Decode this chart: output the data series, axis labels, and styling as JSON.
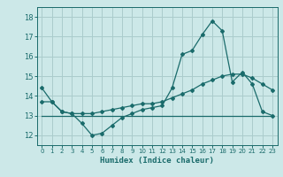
{
  "title": "",
  "xlabel": "Humidex (Indice chaleur)",
  "ylabel": "",
  "bg_color": "#cce8e8",
  "grid_color": "#aacccc",
  "line_color": "#1a6b6b",
  "x_data": [
    0,
    1,
    2,
    3,
    4,
    5,
    6,
    7,
    8,
    9,
    10,
    11,
    12,
    13,
    14,
    15,
    16,
    17,
    18,
    19,
    20,
    21,
    22,
    23
  ],
  "series1": [
    14.4,
    13.7,
    13.2,
    13.1,
    12.6,
    12.0,
    12.1,
    12.5,
    12.9,
    13.1,
    13.3,
    13.4,
    13.5,
    14.4,
    16.1,
    16.3,
    17.1,
    17.8,
    17.3,
    14.7,
    15.2,
    14.6,
    13.2,
    13.0
  ],
  "series2": [
    13.7,
    13.7,
    13.2,
    13.1,
    13.1,
    13.1,
    13.2,
    13.3,
    13.4,
    13.5,
    13.6,
    13.6,
    13.7,
    13.9,
    14.1,
    14.3,
    14.6,
    14.8,
    15.0,
    15.1,
    15.1,
    14.9,
    14.6,
    14.3
  ],
  "series3": [
    13.0,
    13.0,
    13.0,
    13.0,
    13.0,
    13.0,
    13.0,
    13.0,
    13.0,
    13.0,
    13.0,
    13.0,
    13.0,
    13.0,
    13.0,
    13.0,
    13.0,
    13.0,
    13.0,
    13.0,
    13.0,
    13.0,
    13.0,
    13.0
  ],
  "ylim": [
    11.5,
    18.5
  ],
  "yticks": [
    12,
    13,
    14,
    15,
    16,
    17,
    18
  ],
  "xlim": [
    -0.5,
    23.5
  ],
  "xticks": [
    0,
    1,
    2,
    3,
    4,
    5,
    6,
    7,
    8,
    9,
    10,
    11,
    12,
    13,
    14,
    15,
    16,
    17,
    18,
    19,
    20,
    21,
    22,
    23
  ]
}
